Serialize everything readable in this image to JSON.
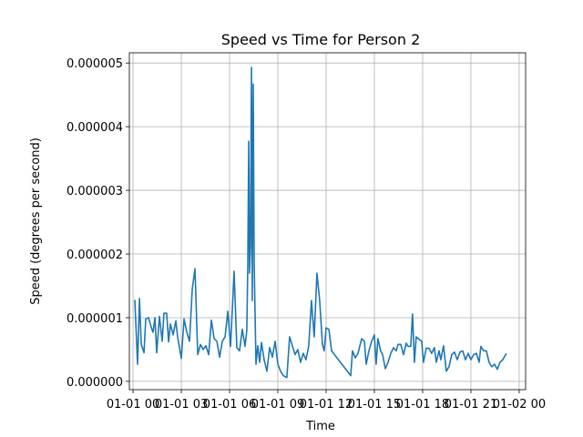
{
  "chart_data": {
    "type": "line",
    "title": "Speed vs Time for Person 2",
    "xlabel": "Time",
    "ylabel": "Speed (degrees per second)",
    "color": "#1f77b4",
    "grid": true,
    "xlim": [
      -0.23,
      24.4
    ],
    "xticks": [
      {
        "value": 0,
        "label": "01-01 00"
      },
      {
        "value": 3,
        "label": "01-01 03"
      },
      {
        "value": 6,
        "label": "01-01 06"
      },
      {
        "value": 9,
        "label": "01-01 09"
      },
      {
        "value": 12,
        "label": "01-01 12"
      },
      {
        "value": 15,
        "label": "01-01 15"
      },
      {
        "value": 18,
        "label": "01-01 18"
      },
      {
        "value": 21,
        "label": "01-01 21"
      },
      {
        "value": 24,
        "label": "01-02 00"
      }
    ],
    "ylim": [
      -1.3e-07,
      5.16e-06
    ],
    "yticks": [
      {
        "value": 0,
        "label": "0.000000"
      },
      1e-06,
      2e-06,
      3e-06,
      4e-06,
      5e-06
    ],
    "x": [
      0.11,
      0.28,
      0.4,
      0.51,
      0.68,
      0.79,
      0.96,
      1.13,
      1.24,
      1.36,
      1.47,
      1.64,
      1.81,
      1.92,
      2.09,
      2.21,
      2.32,
      2.49,
      2.66,
      2.77,
      3.0,
      3.17,
      3.34,
      3.51,
      3.68,
      3.85,
      4.02,
      4.19,
      4.36,
      4.53,
      4.7,
      4.87,
      5.04,
      5.21,
      5.38,
      5.55,
      5.72,
      5.89,
      6.06,
      6.17,
      6.28,
      6.45,
      6.62,
      6.79,
      6.96,
      7.07,
      7.13,
      7.19,
      7.24,
      7.3,
      7.36,
      7.41,
      7.47,
      7.53,
      7.64,
      7.75,
      7.87,
      7.98,
      8.15,
      8.32,
      8.49,
      8.66,
      8.83,
      9.0,
      9.17,
      9.34,
      9.56,
      9.73,
      9.9,
      10.07,
      10.24,
      10.41,
      10.58,
      10.75,
      10.92,
      11.09,
      11.26,
      11.43,
      11.6,
      11.77,
      11.88,
      12.0,
      12.17,
      12.34,
      13.53,
      13.64,
      13.81,
      13.98,
      14.21,
      14.38,
      14.49,
      14.66,
      14.83,
      15.0,
      15.11,
      15.22,
      15.39,
      15.51,
      15.68,
      15.85,
      16.02,
      16.19,
      16.36,
      16.47,
      16.64,
      16.81,
      16.98,
      17.09,
      17.26,
      17.37,
      17.49,
      17.6,
      17.77,
      17.94,
      18.05,
      18.22,
      18.39,
      18.56,
      18.73,
      18.85,
      19.02,
      19.13,
      19.3,
      19.47,
      19.64,
      19.81,
      19.98,
      20.15,
      20.32,
      20.49,
      20.66,
      20.83,
      21.0,
      21.17,
      21.34,
      21.51,
      21.62,
      21.79,
      21.96,
      22.13,
      22.3,
      22.47,
      22.64,
      22.81,
      22.98,
      23.2
    ],
    "values": [
      1.28e-06,
      2.7e-07,
      1.3e-06,
      5.8e-07,
      4.5e-07,
      9.8e-07,
      1e-06,
      8.5e-07,
      7.7e-07,
      1e-06,
      4.5e-07,
      1.02e-06,
      6.3e-07,
      1.07e-06,
      1.07e-06,
      6.2e-07,
      9e-07,
      7.3e-07,
      9.5e-07,
      7e-07,
      3.6e-07,
      9.8e-07,
      7.7e-07,
      6.3e-07,
      1.45e-06,
      1.77e-06,
      4.2e-07,
      5.8e-07,
      5e-07,
      5.6e-07,
      4.2e-07,
      9.6e-07,
      6.7e-07,
      6.3e-07,
      3.8e-07,
      6.3e-07,
      7e-07,
      1.1e-06,
      5.5e-07,
      1.13e-06,
      1.73e-06,
      5.3e-07,
      4.8e-07,
      8.2e-07,
      5.5e-07,
      8e-07,
      1.8e-06,
      3.77e-06,
      1.7e-06,
      2.13e-06,
      4.93e-06,
      1.27e-06,
      4.67e-06,
      1.84e-06,
      2.7e-07,
      5.6e-07,
      3e-07,
      6.1e-07,
      3.4e-07,
      1.6e-07,
      5.3e-07,
      3.8e-07,
      6.3e-07,
      2.7e-07,
      1.6e-07,
      9e-08,
      6e-08,
      7e-07,
      5.6e-07,
      4.2e-07,
      5e-07,
      3e-07,
      4.4e-07,
      3.4e-07,
      5.6e-07,
      1.27e-06,
      7e-07,
      1.7e-06,
      1.27e-06,
      5.8e-07,
      4.8e-07,
      8.4e-07,
      8.2e-07,
      4.8e-07,
      9e-08,
      4.8e-07,
      3.7e-07,
      4.4e-07,
      6.7e-07,
      6.3e-07,
      2.7e-07,
      4.8e-07,
      6.3e-07,
      7.3e-07,
      2.7e-07,
      6.7e-07,
      4.8e-07,
      4.2e-07,
      2e-07,
      3e-07,
      4.4e-07,
      5.3e-07,
      4.8e-07,
      5.8e-07,
      5.8e-07,
      4.2e-07,
      6e-07,
      5.5e-07,
      5.5e-07,
      1.06e-06,
      3e-07,
      7e-07,
      6.6e-07,
      6.3e-07,
      3e-07,
      5.2e-07,
      5.2e-07,
      4.4e-07,
      5.3e-07,
      3e-07,
      4.8e-07,
      3.4e-07,
      5.6e-07,
      1.6e-07,
      2.3e-07,
      4.2e-07,
      4.6e-07,
      3.4e-07,
      4.6e-07,
      4.8e-07,
      3.4e-07,
      4.4e-07,
      3.4e-07,
      4.2e-07,
      4.4e-07,
      3e-07,
      5.5e-07,
      4.8e-07,
      4.8e-07,
      3e-07,
      2.3e-07,
      2.7e-07,
      1.9e-07,
      3e-07,
      3.4e-07,
      4.4e-07
    ]
  }
}
